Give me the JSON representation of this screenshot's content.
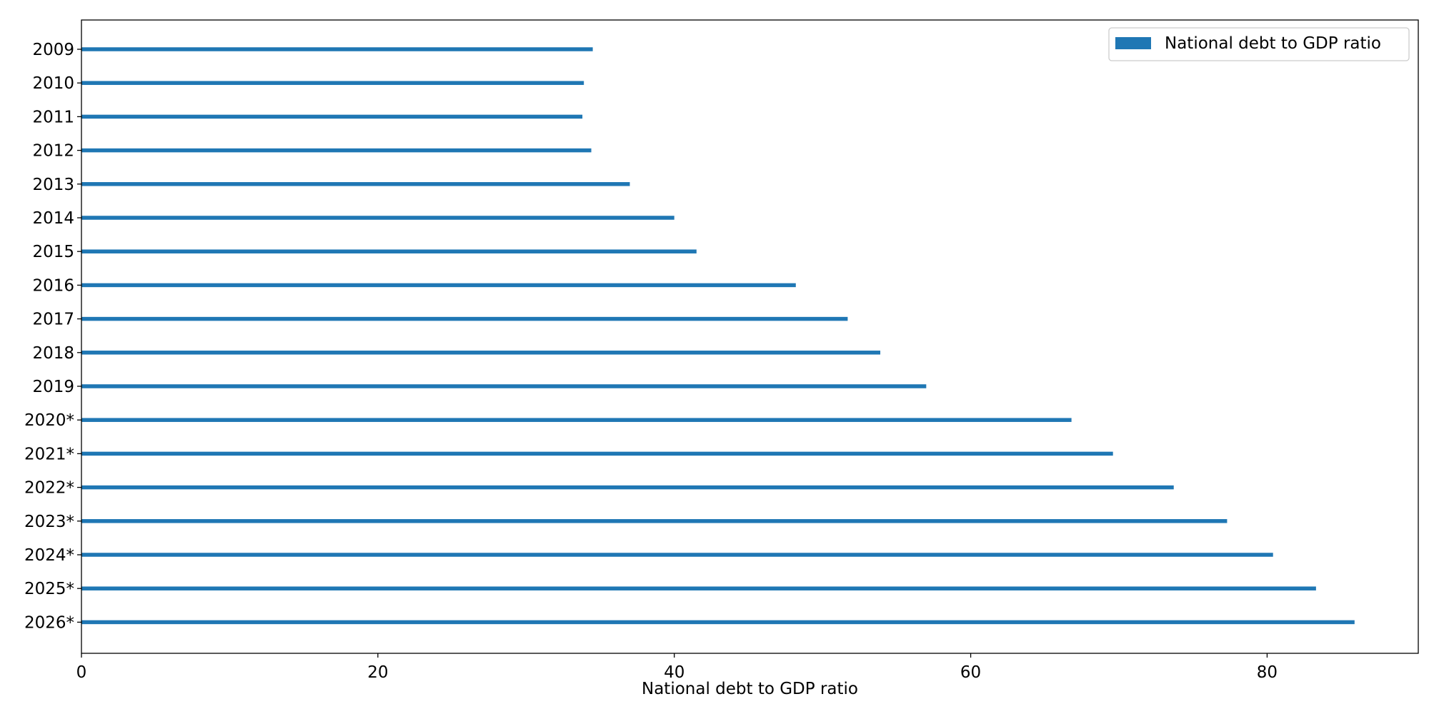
{
  "chart_data": {
    "type": "bar",
    "orientation": "horizontal",
    "categories": [
      "2009",
      "2010",
      "2011",
      "2012",
      "2013",
      "2014",
      "2015",
      "2016",
      "2017",
      "2018",
      "2019",
      "2020*",
      "2021*",
      "2022*",
      "2023*",
      "2024*",
      "2025*",
      "2026*"
    ],
    "series": [
      {
        "name": "National debt to GDP ratio",
        "values": [
          34.5,
          33.9,
          33.8,
          34.4,
          37.0,
          40.0,
          41.5,
          48.2,
          51.7,
          53.9,
          57.0,
          66.8,
          69.6,
          73.7,
          77.3,
          80.4,
          83.3,
          85.9
        ],
        "color": "#1f77b4"
      }
    ],
    "xlabel": "National debt to GDP ratio",
    "ylabel": "",
    "xlim": [
      0,
      90.2
    ],
    "x_ticks": [
      0,
      20,
      40,
      60,
      80
    ],
    "category_order": "top-to-bottom",
    "grid": false,
    "legend_position": "top-right"
  }
}
